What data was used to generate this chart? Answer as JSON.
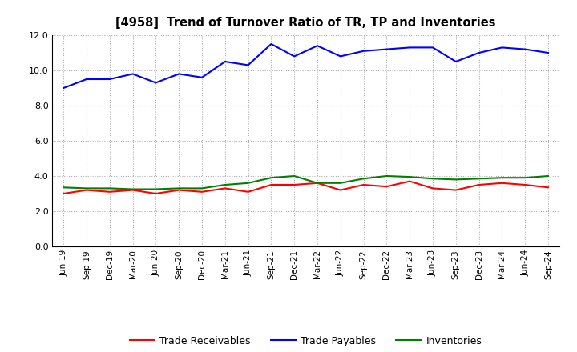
{
  "title": "[4958]  Trend of Turnover Ratio of TR, TP and Inventories",
  "x_labels": [
    "Jun-19",
    "Sep-19",
    "Dec-19",
    "Mar-20",
    "Jun-20",
    "Sep-20",
    "Dec-20",
    "Mar-21",
    "Jun-21",
    "Sep-21",
    "Dec-21",
    "Mar-22",
    "Jun-22",
    "Sep-22",
    "Dec-22",
    "Mar-23",
    "Jun-23",
    "Sep-23",
    "Dec-23",
    "Mar-24",
    "Jun-24",
    "Sep-24"
  ],
  "trade_receivables": [
    3.0,
    3.2,
    3.1,
    3.2,
    3.0,
    3.2,
    3.1,
    3.3,
    3.1,
    3.5,
    3.5,
    3.6,
    3.2,
    3.5,
    3.4,
    3.7,
    3.3,
    3.2,
    3.5,
    3.6,
    3.5,
    3.35
  ],
  "trade_payables": [
    9.0,
    9.5,
    9.5,
    9.8,
    9.3,
    9.8,
    9.6,
    10.5,
    10.3,
    11.5,
    10.8,
    11.4,
    10.8,
    11.1,
    11.2,
    11.3,
    11.3,
    10.5,
    11.0,
    11.3,
    11.2,
    11.0
  ],
  "inventories": [
    3.35,
    3.3,
    3.3,
    3.25,
    3.25,
    3.3,
    3.3,
    3.5,
    3.6,
    3.9,
    4.0,
    3.6,
    3.6,
    3.85,
    4.0,
    3.95,
    3.85,
    3.8,
    3.85,
    3.9,
    3.9,
    4.0
  ],
  "tr_color": "#FF0000",
  "tp_color": "#0000FF",
  "inv_color": "#008000",
  "ylim": [
    0,
    12.0
  ],
  "yticks": [
    0.0,
    2.0,
    4.0,
    6.0,
    8.0,
    10.0,
    12.0
  ],
  "legend_labels": [
    "Trade Receivables",
    "Trade Payables",
    "Inventories"
  ],
  "background_color": "#FFFFFF",
  "grid_color": "#999999"
}
